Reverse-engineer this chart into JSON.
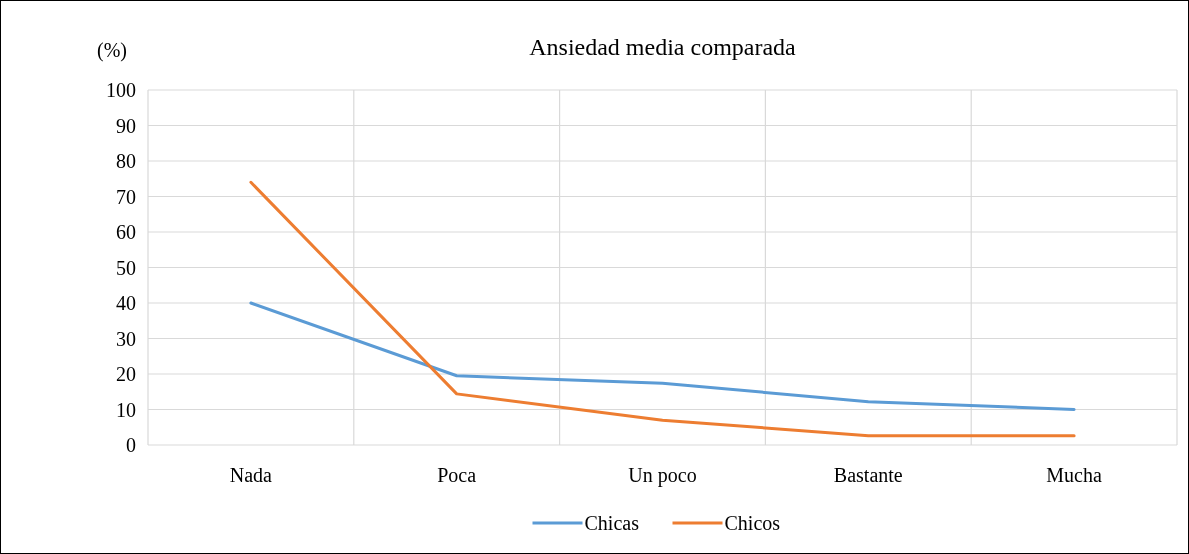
{
  "chart_data": {
    "type": "line",
    "title": "Ansiedad media comparada",
    "ylabel": "(%)",
    "categories": [
      "Nada",
      "Poca",
      "Un poco",
      "Bastante",
      "Mucha"
    ],
    "series": [
      {
        "name": "Chicas",
        "color": "#5b9bd5",
        "values": [
          40,
          19.5,
          17.4,
          12.2,
          10
        ]
      },
      {
        "name": "Chicos",
        "color": "#ed7d31",
        "values": [
          74,
          14.4,
          7,
          2.6,
          2.6
        ]
      }
    ],
    "ylim": [
      0,
      100
    ],
    "yticks": [
      0,
      10,
      20,
      30,
      40,
      50,
      60,
      70,
      80,
      90,
      100
    ],
    "grid": true,
    "legend": "bottom",
    "marker": "none",
    "line_style": "solid"
  }
}
